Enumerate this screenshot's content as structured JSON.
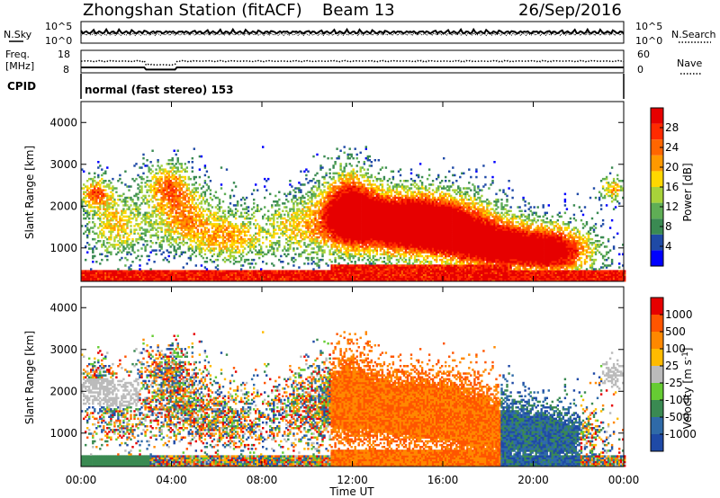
{
  "header": {
    "station": "Zhongshan Station (fitACF)",
    "beam": "Beam 13",
    "date": "26/Sep/2016"
  },
  "top_panels": {
    "nsky_label": "N.Sky",
    "nsearch_label": "N.Search",
    "nsky_ticks": [
      "10^5",
      "10^0"
    ],
    "nsearch_ticks": [
      "10^5",
      "10^0"
    ],
    "freq_label_1": "Freq.",
    "freq_label_2": "[MHz]",
    "freq_ticks": [
      "18",
      "8"
    ],
    "nave_label": "Nave",
    "nave_ticks": [
      "60",
      "0"
    ],
    "cpid_label": "CPID",
    "cpid_text": "normal (fast stereo) 153"
  },
  "colors": {
    "power_scale": [
      "#0000ff",
      "#1f4aa6",
      "#3a8a52",
      "#5fae55",
      "#a8d23a",
      "#ffd700",
      "#ff9900",
      "#ff6600",
      "#ff2a00",
      "#e60000"
    ],
    "velocity_scale": [
      "#1f4aa6",
      "#2f6aa8",
      "#3a8a52",
      "#66cc33",
      "#bbbbbb",
      "#ffbb00",
      "#ff8800",
      "#ff5500",
      "#e60000"
    ]
  },
  "chart_data": [
    {
      "type": "heatmap",
      "name": "power",
      "ylabel": "Slant Range [km]",
      "xlabel": "",
      "x_ticks": [
        "00:00",
        "04:00",
        "08:00",
        "12:00",
        "16:00",
        "20:00",
        "00:00"
      ],
      "xlim": [
        0,
        24
      ],
      "ylim": [
        200,
        4500
      ],
      "y_ticks": [
        1000,
        2000,
        3000,
        4000
      ],
      "colorbar_label": "Power [dB]",
      "colorbar_ticks": [
        "4",
        "8",
        "12",
        "16",
        "20",
        "24",
        "28"
      ],
      "colorbar_range": [
        0,
        30
      ]
    },
    {
      "type": "heatmap",
      "name": "velocity",
      "ylabel": "Slant Range [km]",
      "xlabel": "Time UT",
      "x_ticks": [
        "00:00",
        "04:00",
        "08:00",
        "12:00",
        "16:00",
        "20:00",
        "00:00"
      ],
      "xlim": [
        0,
        24
      ],
      "ylim": [
        200,
        4500
      ],
      "y_ticks": [
        1000,
        2000,
        3000,
        4000
      ],
      "colorbar_label": "Velocity [m s",
      "colorbar_label_sup": "-1",
      "colorbar_label_end": "]",
      "colorbar_ticks": [
        "1000",
        "500",
        "100",
        "25",
        "-25",
        "-100",
        "-500",
        "-1000"
      ]
    }
  ]
}
